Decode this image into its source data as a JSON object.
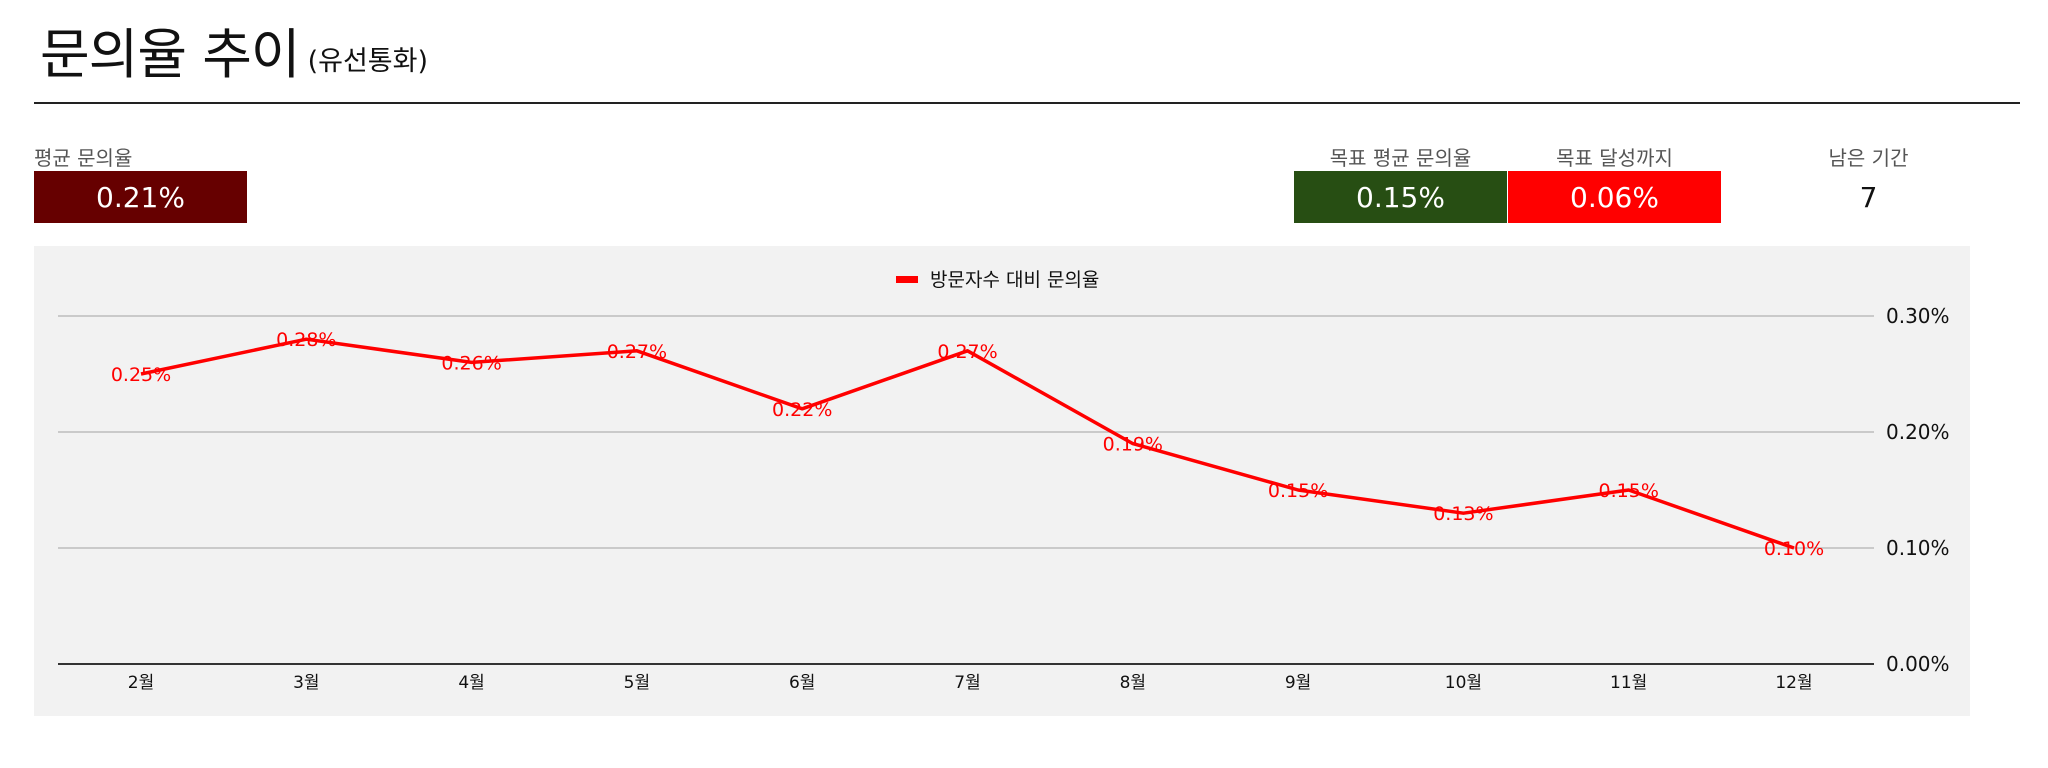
{
  "header": {
    "title": "문의율 추이",
    "subtitle": "(유선통화)"
  },
  "kpis": {
    "avg_label": "평균 문의율",
    "avg_value": "0.21%",
    "target_label": "목표 평균 문의율",
    "target_value": "0.15%",
    "gap_label": "목표 달성까지",
    "gap_value": "0.06%",
    "remaining_label": "남은 기간",
    "remaining_value": "7"
  },
  "colors": {
    "avg_box": "#660000",
    "target_box": "#274e13",
    "gap_box": "#ff0000",
    "series": "#ff0000"
  },
  "chart_data": {
    "type": "line",
    "categories": [
      "2월",
      "3월",
      "4월",
      "5월",
      "6월",
      "7월",
      "8월",
      "9월",
      "10월",
      "11월",
      "12월"
    ],
    "series": [
      {
        "name": "방문자수 대비 문의율",
        "values": [
          0.25,
          0.28,
          0.26,
          0.27,
          0.22,
          0.27,
          0.19,
          0.15,
          0.13,
          0.15,
          0.1
        ],
        "labels": [
          "0.25%",
          "0.28%",
          "0.26%",
          "0.27%",
          "0.22%",
          "0.27%",
          "0.19%",
          "0.15%",
          "0.13%",
          "0.15%",
          "0.10%"
        ]
      }
    ],
    "ylim": [
      0,
      0.3
    ],
    "yticks": [
      0,
      0.1,
      0.2,
      0.3
    ],
    "ytick_labels": [
      "0.00%",
      "0.10%",
      "0.20%",
      "0.30%"
    ],
    "y_axis_side": "right",
    "legend": "top-center",
    "grid": true
  }
}
